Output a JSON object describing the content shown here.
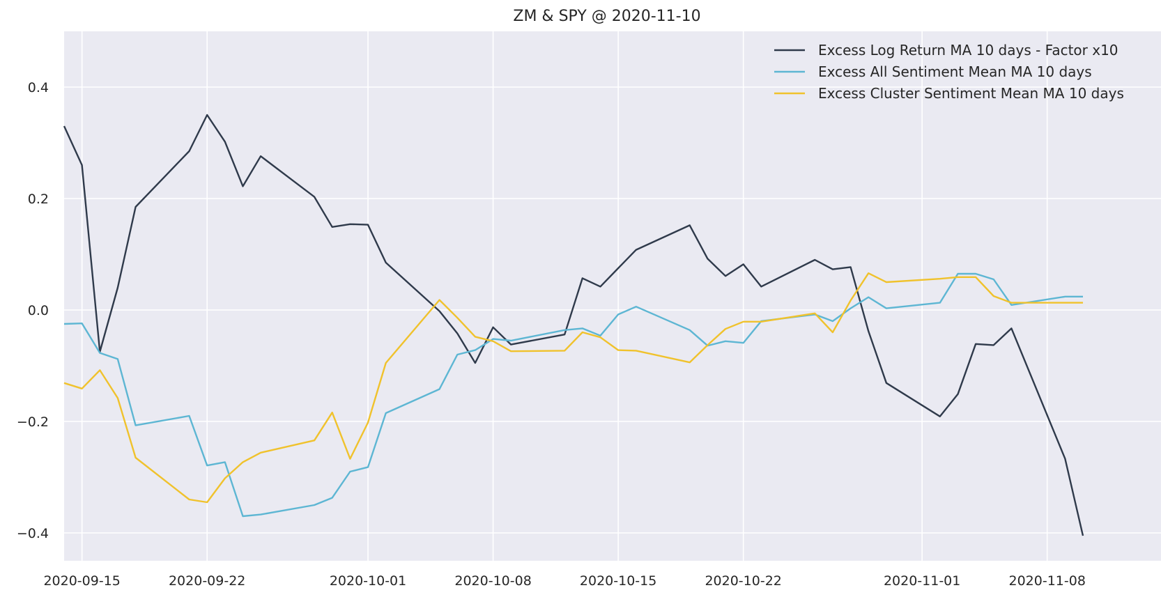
{
  "chart_data": {
    "type": "line",
    "title": "ZM & SPY @ 2020-11-10",
    "xlabel": "",
    "ylabel": "",
    "x_axis_type": "date",
    "xlim": [
      "2020-09-14",
      "2020-11-10"
    ],
    "ylim": [
      -0.45,
      0.5
    ],
    "x_ticks": [
      "2020-09-15",
      "2020-09-22",
      "2020-10-01",
      "2020-10-08",
      "2020-10-15",
      "2020-10-22",
      "2020-11-01",
      "2020-11-08"
    ],
    "y_ticks": [
      0.4,
      0.2,
      0.0,
      -0.2,
      -0.4
    ],
    "y_tick_labels": [
      "0.4",
      "0.2",
      "0.0",
      "−0.2",
      "−0.4"
    ],
    "grid": true,
    "legend_position": "top-right",
    "background_color": "#eaeaf2",
    "series": [
      {
        "name": "Excess Log Return MA 10 days - Factor x10",
        "color": "#2f3a4b",
        "points": [
          [
            "2020-09-14",
            0.33
          ],
          [
            "2020-09-15",
            0.26
          ],
          [
            "2020-09-16",
            -0.075
          ],
          [
            "2020-09-17",
            0.04
          ],
          [
            "2020-09-18",
            0.185
          ],
          [
            "2020-09-21",
            0.285
          ],
          [
            "2020-09-22",
            0.35
          ],
          [
            "2020-09-23",
            0.302
          ],
          [
            "2020-09-24",
            0.222
          ],
          [
            "2020-09-25",
            0.276
          ],
          [
            "2020-09-28",
            0.203
          ],
          [
            "2020-09-29",
            0.149
          ],
          [
            "2020-09-30",
            0.154
          ],
          [
            "2020-10-01",
            0.153
          ],
          [
            "2020-10-02",
            0.085
          ],
          [
            "2020-10-05",
            -0.002
          ],
          [
            "2020-10-06",
            -0.042
          ],
          [
            "2020-10-07",
            -0.095
          ],
          [
            "2020-10-08",
            -0.031
          ],
          [
            "2020-10-09",
            -0.062
          ],
          [
            "2020-10-12",
            -0.044
          ],
          [
            "2020-10-13",
            0.057
          ],
          [
            "2020-10-14",
            0.042
          ],
          [
            "2020-10-15",
            0.075
          ],
          [
            "2020-10-16",
            0.108
          ],
          [
            "2020-10-19",
            0.152
          ],
          [
            "2020-10-20",
            0.092
          ],
          [
            "2020-10-21",
            0.061
          ],
          [
            "2020-10-22",
            0.082
          ],
          [
            "2020-10-23",
            0.042
          ],
          [
            "2020-10-26",
            0.09
          ],
          [
            "2020-10-27",
            0.073
          ],
          [
            "2020-10-28",
            0.077
          ],
          [
            "2020-10-29",
            -0.038
          ],
          [
            "2020-10-30",
            -0.131
          ],
          [
            "2020-11-02",
            -0.191
          ],
          [
            "2020-11-03",
            -0.151
          ],
          [
            "2020-11-04",
            -0.061
          ],
          [
            "2020-11-05",
            -0.063
          ],
          [
            "2020-11-06",
            -0.033
          ],
          [
            "2020-11-09",
            -0.267
          ],
          [
            "2020-11-10",
            -0.405
          ]
        ]
      },
      {
        "name": "Excess All Sentiment Mean MA 10 days",
        "color": "#5db6d3",
        "points": [
          [
            "2020-09-14",
            -0.025
          ],
          [
            "2020-09-15",
            -0.024
          ],
          [
            "2020-09-16",
            -0.077
          ],
          [
            "2020-09-17",
            -0.088
          ],
          [
            "2020-09-18",
            -0.207
          ],
          [
            "2020-09-21",
            -0.19
          ],
          [
            "2020-09-22",
            -0.279
          ],
          [
            "2020-09-23",
            -0.273
          ],
          [
            "2020-09-24",
            -0.37
          ],
          [
            "2020-09-25",
            -0.367
          ],
          [
            "2020-09-28",
            -0.35
          ],
          [
            "2020-09-29",
            -0.337
          ],
          [
            "2020-09-30",
            -0.29
          ],
          [
            "2020-10-01",
            -0.282
          ],
          [
            "2020-10-02",
            -0.185
          ],
          [
            "2020-10-05",
            -0.142
          ],
          [
            "2020-10-06",
            -0.08
          ],
          [
            "2020-10-07",
            -0.072
          ],
          [
            "2020-10-08",
            -0.052
          ],
          [
            "2020-10-09",
            -0.055
          ],
          [
            "2020-10-12",
            -0.036
          ],
          [
            "2020-10-13",
            -0.033
          ],
          [
            "2020-10-14",
            -0.046
          ],
          [
            "2020-10-15",
            -0.008
          ],
          [
            "2020-10-16",
            0.006
          ],
          [
            "2020-10-19",
            -0.036
          ],
          [
            "2020-10-20",
            -0.064
          ],
          [
            "2020-10-21",
            -0.056
          ],
          [
            "2020-10-22",
            -0.059
          ],
          [
            "2020-10-23",
            -0.02
          ],
          [
            "2020-10-26",
            -0.008
          ],
          [
            "2020-10-27",
            -0.02
          ],
          [
            "2020-10-28",
            0.003
          ],
          [
            "2020-10-29",
            0.023
          ],
          [
            "2020-10-30",
            0.003
          ],
          [
            "2020-11-02",
            0.013
          ],
          [
            "2020-11-03",
            0.065
          ],
          [
            "2020-11-04",
            0.065
          ],
          [
            "2020-11-05",
            0.055
          ],
          [
            "2020-11-06",
            0.009
          ],
          [
            "2020-11-09",
            0.024
          ],
          [
            "2020-11-10",
            0.024
          ]
        ]
      },
      {
        "name": "Excess Cluster Sentiment Mean MA 10 days",
        "color": "#f0c22c",
        "points": [
          [
            "2020-09-14",
            -0.131
          ],
          [
            "2020-09-15",
            -0.141
          ],
          [
            "2020-09-16",
            -0.108
          ],
          [
            "2020-09-17",
            -0.158
          ],
          [
            "2020-09-18",
            -0.265
          ],
          [
            "2020-09-21",
            -0.34
          ],
          [
            "2020-09-22",
            -0.345
          ],
          [
            "2020-09-23",
            -0.302
          ],
          [
            "2020-09-24",
            -0.273
          ],
          [
            "2020-09-25",
            -0.256
          ],
          [
            "2020-09-28",
            -0.234
          ],
          [
            "2020-09-29",
            -0.184
          ],
          [
            "2020-09-30",
            -0.267
          ],
          [
            "2020-10-01",
            -0.202
          ],
          [
            "2020-10-02",
            -0.095
          ],
          [
            "2020-10-05",
            0.018
          ],
          [
            "2020-10-06",
            -0.014
          ],
          [
            "2020-10-07",
            -0.048
          ],
          [
            "2020-10-08",
            -0.056
          ],
          [
            "2020-10-09",
            -0.074
          ],
          [
            "2020-10-12",
            -0.073
          ],
          [
            "2020-10-13",
            -0.04
          ],
          [
            "2020-10-14",
            -0.049
          ],
          [
            "2020-10-15",
            -0.072
          ],
          [
            "2020-10-16",
            -0.073
          ],
          [
            "2020-10-19",
            -0.094
          ],
          [
            "2020-10-20",
            -0.063
          ],
          [
            "2020-10-21",
            -0.034
          ],
          [
            "2020-10-22",
            -0.021
          ],
          [
            "2020-10-23",
            -0.021
          ],
          [
            "2020-10-26",
            -0.006
          ],
          [
            "2020-10-27",
            -0.04
          ],
          [
            "2020-10-28",
            0.017
          ],
          [
            "2020-10-29",
            0.066
          ],
          [
            "2020-10-30",
            0.05
          ],
          [
            "2020-11-02",
            0.056
          ],
          [
            "2020-11-03",
            0.059
          ],
          [
            "2020-11-04",
            0.059
          ],
          [
            "2020-11-05",
            0.025
          ],
          [
            "2020-11-06",
            0.013
          ],
          [
            "2020-11-09",
            0.013
          ],
          [
            "2020-11-10",
            0.013
          ]
        ]
      }
    ]
  }
}
